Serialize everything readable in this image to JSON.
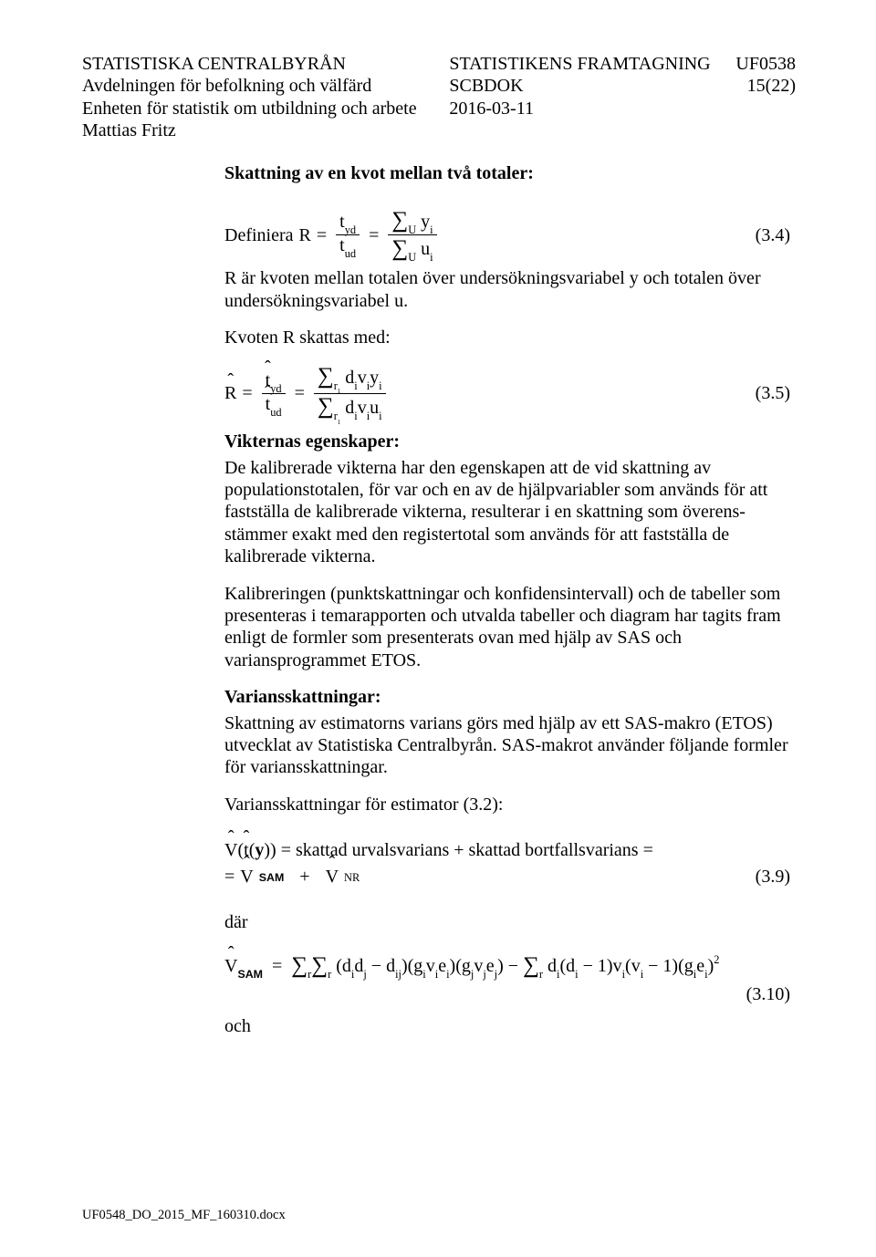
{
  "header": {
    "left": {
      "l1": "STATISTISKA CENTRALBYRÅN",
      "l2": "Avdelningen för befolkning och välfärd",
      "l3": "Enheten för statistik om utbildning och arbete",
      "l4": "Mattias Fritz"
    },
    "mid": {
      "l1": "STATISTIKENS FRAMTAGNING",
      "l2": "SCBDOK",
      "l3": "2016-03-11"
    },
    "right": {
      "l1": "UF0538",
      "l2": "15(22)"
    }
  },
  "title1": "Skattning av en kvot mellan två totaler:",
  "def_label": "Definiera ",
  "eq34_txt": "(3.4)",
  "eq34": {
    "R": "R",
    "eq": "=",
    "tyd": "t",
    "tyd_sub": "yd",
    "tud": "t",
    "tud_sub": "ud",
    "sum": "∑",
    "Usub": "U",
    "y": "y",
    "u": "u",
    "i": "i"
  },
  "para_R": "R är kvoten mellan totalen över undersökningsvariabel y och totalen över undersökningsvariabel u.",
  "kvoten_title": "Kvoten R skattas med:",
  "eq35_txt": "(3.5)",
  "eq35": {
    "Rhat": "R",
    "eq": "=",
    "that_yd": "t",
    "that_yd_sub": "yd",
    "that_ud": "t",
    "that_ud_sub": "ud",
    "sum": "∑",
    "r1sub": "r",
    "r1ss": "1",
    "d": "d",
    "v": "v",
    "y": "y",
    "u": "u",
    "i": "i"
  },
  "vikternas_title": "Vikternas egenskaper:",
  "para_vikt": "De kalibrerade vikterna har den egenskapen att de vid skattning av populationstotalen, för var och en av de hjälpvariabler som används för att fastställa de kalibrerade vikterna, resulterar i en skattning som överens-stämmer exakt med den registertotal som används för att fastställa de kalibrerade vikterna.",
  "para_kal": "Kalibreringen (punktskattningar och konfidensintervall) och de tabeller som presenteras i temarapporten och utvalda tabeller och diagram har tagits fram enligt de formler som presenterats ovan med hjälp av SAS och variansprogrammet ETOS.",
  "varians_title": "Variansskattningar:",
  "para_var1": "Skattning av estimatorns varians görs med hjälp av ett SAS-makro (ETOS) utvecklat av Statistiska Centralbyrån. SAS-makrot använder följande formler för variansskattningar.",
  "para_var2": "Variansskattningar för estimator (3.2):",
  "vts_line1_a": " = skattad urvalsvarians + skattad bortfallsvarians =",
  "vts_line2_eq": "= ",
  "eq39_txt": "(3.9)",
  "dar": "där",
  "och": "och",
  "eq310_txt": "(3.10)",
  "vhat": "V",
  "that": "t",
  "yvec": "y",
  "sam": "SAM",
  "nr": "NR",
  "plus": "+",
  "footer": "UF0548_DO_2015_MF_160310.docx"
}
